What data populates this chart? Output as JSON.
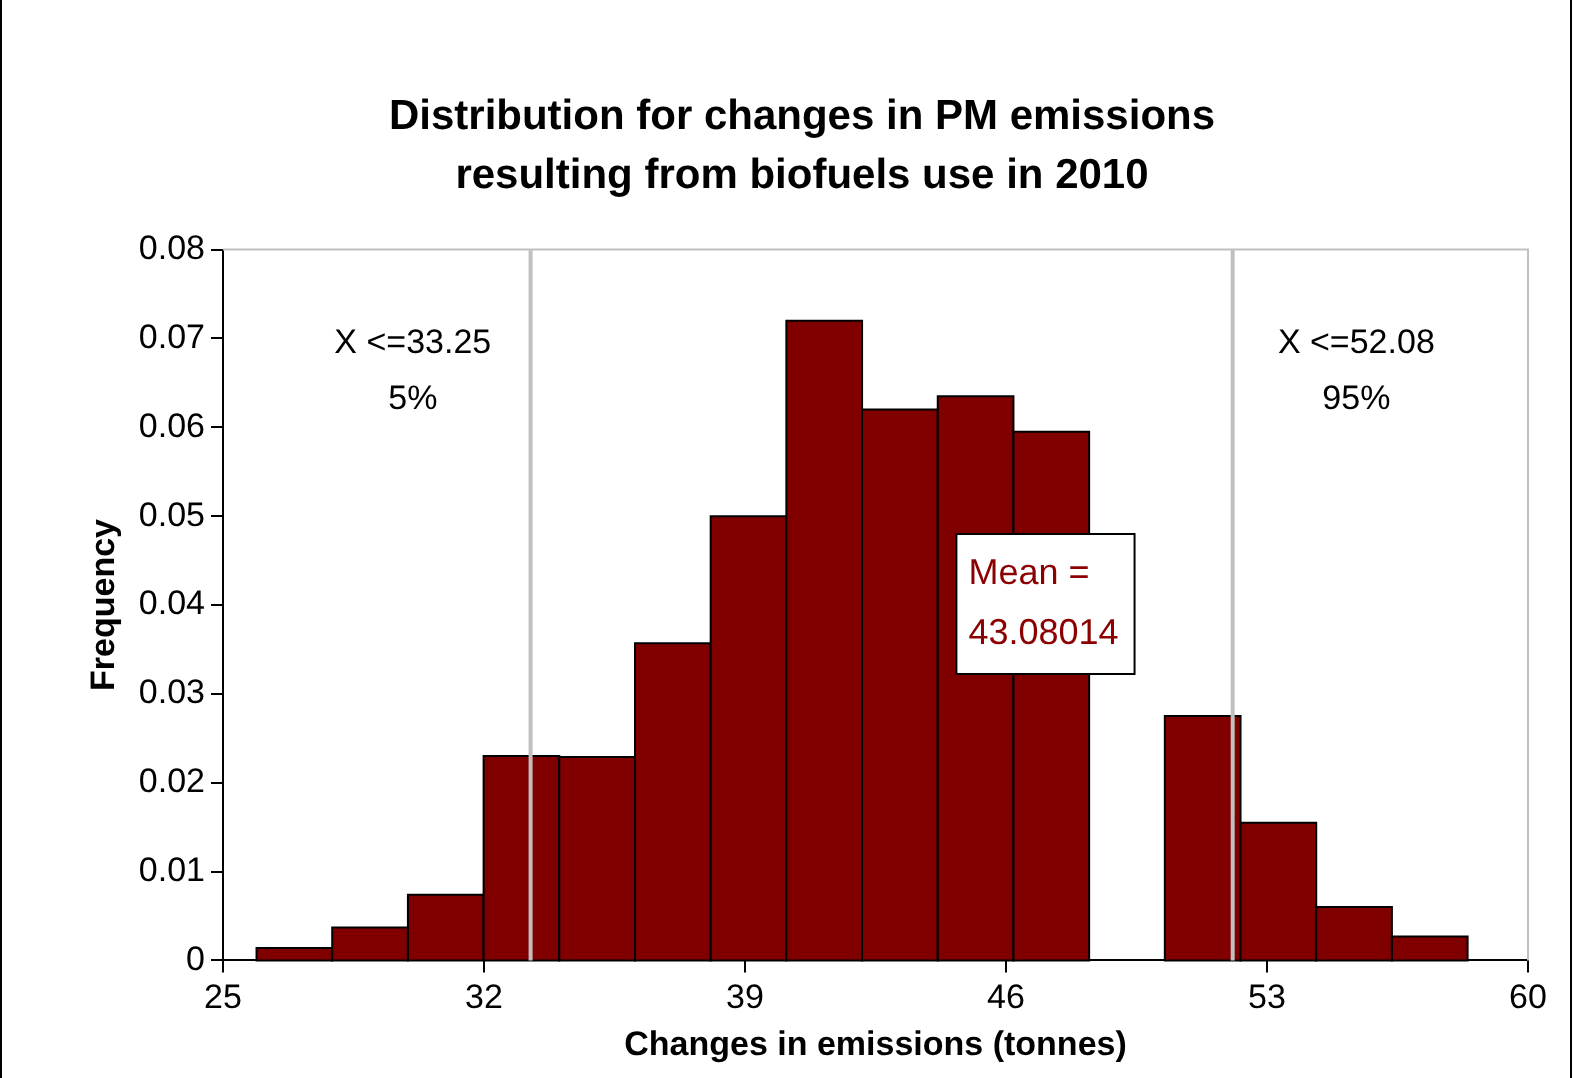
{
  "chart_data": {
    "type": "histogram",
    "title": "Distribution for changes in PM emissions\nresulting from biofuels use in 2010",
    "xlabel": "Changes in emissions (tonnes)",
    "ylabel": "Frequency",
    "bins": [
      25.9,
      27.93,
      29.96,
      31.99,
      34.02,
      36.05,
      38.08,
      40.11,
      42.14,
      44.17,
      46.2,
      48.23,
      50.26,
      52.29,
      54.32,
      56.35,
      58.38
    ],
    "values": [
      0.0014,
      0.0037,
      0.0074,
      0.023,
      0.0229,
      0.0357,
      0.05,
      0.072,
      0.062,
      0.0635,
      0.0595,
      null,
      0.0275,
      0.0155,
      0.006,
      0.0027
    ],
    "color": "#800000",
    "xlim": [
      25,
      60
    ],
    "xticks": [
      25,
      32,
      39,
      46,
      53,
      60
    ],
    "ylim": [
      0,
      0.08
    ],
    "yticks": [
      0,
      0.01,
      0.02,
      0.03,
      0.04,
      0.05,
      0.06,
      0.07,
      0.08
    ],
    "grid": false,
    "legend": false,
    "ref_lines": [
      {
        "axis": "x",
        "value": 33.25,
        "label": "X <=33.25\n5%",
        "color": "#c0c0c0"
      },
      {
        "axis": "x",
        "value": 52.08,
        "label": "X <=52.08\n95%",
        "color": "#c0c0c0"
      }
    ],
    "annotations": [
      "Mean =\n43.08014"
    ]
  }
}
